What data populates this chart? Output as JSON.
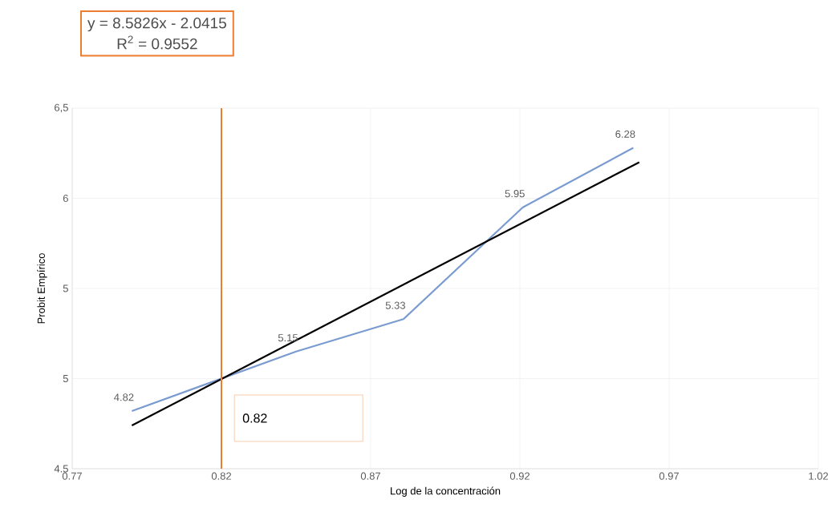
{
  "chart_data": {
    "type": "line",
    "xlabel": "Log de la concentración",
    "ylabel": "Probit Empírico",
    "xlim": [
      0.77,
      1.02
    ],
    "xticks": [
      0.77,
      0.82,
      0.87,
      0.92,
      0.97,
      1.02
    ],
    "ylim": [
      4.5,
      6.5
    ],
    "yticks": [
      4.5,
      5,
      {
        "value": 5.5,
        "label": "5"
      },
      6,
      {
        "value": 6.5,
        "label": "6,5"
      }
    ],
    "grid": true,
    "marker": "none",
    "series": [
      {
        "color": "#7a9bd0",
        "x": [
          0.79,
          0.845,
          0.881,
          0.921,
          0.958
        ],
        "values": [
          4.82,
          5.15,
          5.33,
          5.95,
          6.28
        ],
        "value_labels": [
          "4.82",
          "5.15",
          "5.33",
          "5.95",
          "6.28"
        ]
      },
      {
        "color": "#000000",
        "x": [
          0.79,
          0.96
        ],
        "values": [
          4.74,
          6.2
        ]
      }
    ],
    "ref_lines": [
      {
        "axis": "x",
        "value": 0.82,
        "label": "0.82",
        "color": "#ed7d31"
      }
    ],
    "annotations": [
      "y = 8.5826x - 2.0415",
      "R$^{2}$ = 0.9552"
    ]
  }
}
